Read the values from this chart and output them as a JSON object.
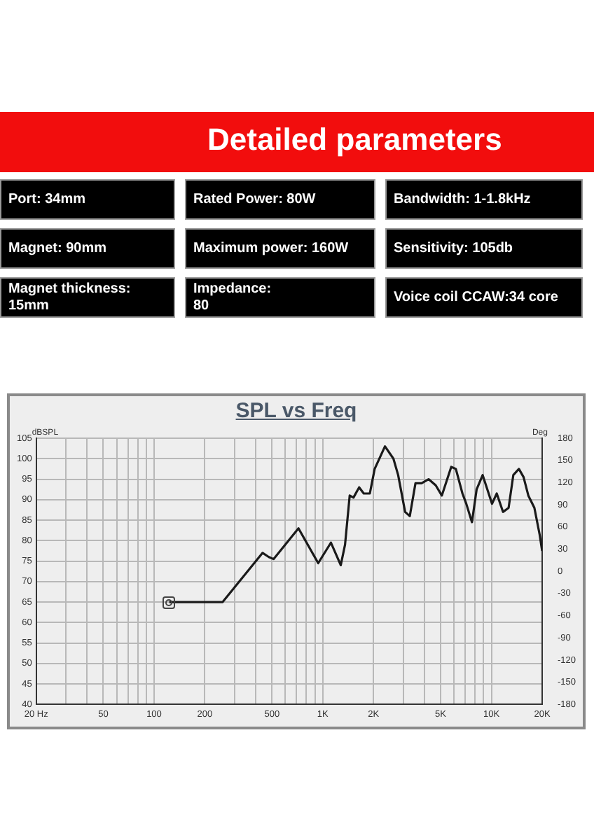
{
  "chart_data": [
    {
      "type": "other",
      "title": "Detailed parameters",
      "annotations": [
        "Port: 34mm",
        "Rated Power: 80W",
        "Bandwidth: 1-1.8kHz",
        "Magnet: 90mm",
        "Maximum power: 160W",
        "Sensitivity: 105db",
        "Magnet thickness: 15mm",
        "Impedance:\n80",
        "Voice coil CCAW:34 core"
      ]
    },
    {
      "type": "line",
      "title": "SPL vs Freq",
      "ylabel": "dBSPL",
      "y2label": "Deg",
      "log": "x",
      "grid": true,
      "legend": false,
      "marker": "none",
      "line_style": "solid",
      "xlim": [
        20,
        20000
      ],
      "xticks": [
        {
          "value": 20,
          "label": "20 Hz"
        },
        {
          "value": 30,
          "label": null
        },
        {
          "value": 40,
          "label": null
        },
        50,
        {
          "value": 60,
          "label": null
        },
        {
          "value": 70,
          "label": null
        },
        {
          "value": 80,
          "label": null
        },
        {
          "value": 90,
          "label": null
        },
        100,
        200,
        {
          "value": 300,
          "label": null
        },
        {
          "value": 400,
          "label": null
        },
        500,
        {
          "value": 600,
          "label": null
        },
        {
          "value": 700,
          "label": null
        },
        {
          "value": 800,
          "label": null
        },
        {
          "value": 900,
          "label": null
        },
        {
          "value": 1000,
          "label": "1K"
        },
        {
          "value": 2000,
          "label": "2K"
        },
        {
          "value": 3000,
          "label": null
        },
        {
          "value": 4000,
          "label": null
        },
        {
          "value": 5000,
          "label": "5K"
        },
        {
          "value": 6000,
          "label": null
        },
        {
          "value": 7000,
          "label": null
        },
        {
          "value": 8000,
          "label": null
        },
        {
          "value": 9000,
          "label": null
        },
        {
          "value": 10000,
          "label": "10K"
        },
        {
          "value": 20000,
          "label": "20K"
        }
      ],
      "ylim": [
        40,
        105
      ],
      "yticks": [
        40,
        45,
        50,
        55,
        60,
        65,
        70,
        75,
        80,
        85,
        90,
        95,
        100,
        105
      ],
      "y2lim": [
        -180,
        180
      ],
      "y2ticks": [
        -180,
        -150,
        -120,
        -90,
        -60,
        -30,
        0,
        30,
        60,
        90,
        120,
        150,
        180
      ],
      "series": [
        {
          "color": "#1a1a1a",
          "x": [
            123,
            255,
            440,
            479,
            511,
            718,
            940,
            1118,
            1279,
            1356,
            1445,
            1521,
            1644,
            1751,
            1902,
            2032,
            2339,
            2625,
            2800,
            3080,
            3283,
            3547,
            3853,
            4243,
            4675,
            5083,
            5780,
            6156,
            6737,
            7097,
            7670,
            8175,
            8878,
            10090,
            10760,
            11720,
            12650,
            13490,
            14560,
            15520,
            16560,
            17990,
            19320,
            20000
          ],
          "values": [
            65,
            65,
            77,
            76,
            75.5,
            83,
            74.5,
            79.5,
            74,
            79,
            91,
            90.5,
            93,
            91.5,
            91.5,
            97.5,
            103,
            100,
            96,
            87,
            86,
            94,
            94,
            95,
            93.5,
            91,
            98,
            97.5,
            91.5,
            89,
            84.5,
            92.5,
            96,
            89,
            91.5,
            87,
            88,
            96,
            97.5,
            95.5,
            91,
            88,
            81.5,
            77.5
          ]
        }
      ]
    }
  ]
}
